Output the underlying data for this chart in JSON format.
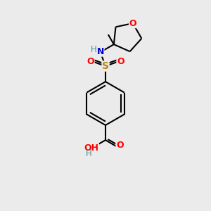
{
  "bg_color": "#ebebeb",
  "bond_color": "#000000",
  "bond_width": 1.5,
  "atom_colors": {
    "C": "#000000",
    "H": "#4a9090",
    "N": "#0000cd",
    "O": "#ff0000",
    "S": "#b8860b"
  },
  "figsize": [
    3.0,
    3.0
  ],
  "dpi": 100
}
